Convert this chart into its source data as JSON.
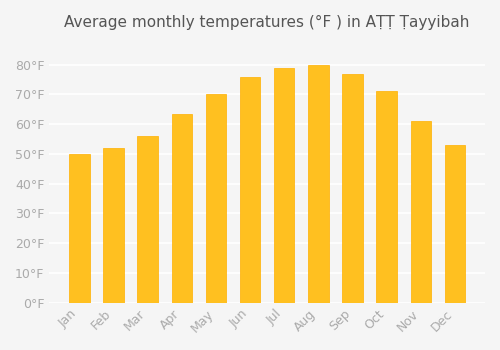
{
  "title": "Average monthly temperatures (°F ) in AṬṬ Ṭayyibah",
  "months": [
    "Jan",
    "Feb",
    "Mar",
    "Apr",
    "May",
    "Jun",
    "Jul",
    "Aug",
    "Sep",
    "Oct",
    "Nov",
    "Dec"
  ],
  "values": [
    50,
    52,
    56,
    63.5,
    70,
    76,
    79,
    80,
    77,
    71,
    61,
    53
  ],
  "bar_color": "#FFC020",
  "bar_edge_color": "#FFB000",
  "background_color": "#F5F5F5",
  "grid_color": "#FFFFFF",
  "tick_label_color": "#AAAAAA",
  "title_color": "#555555",
  "ylim": [
    0,
    88
  ],
  "yticks": [
    0,
    10,
    20,
    30,
    40,
    50,
    60,
    70,
    80
  ],
  "title_fontsize": 11,
  "tick_fontsize": 9
}
